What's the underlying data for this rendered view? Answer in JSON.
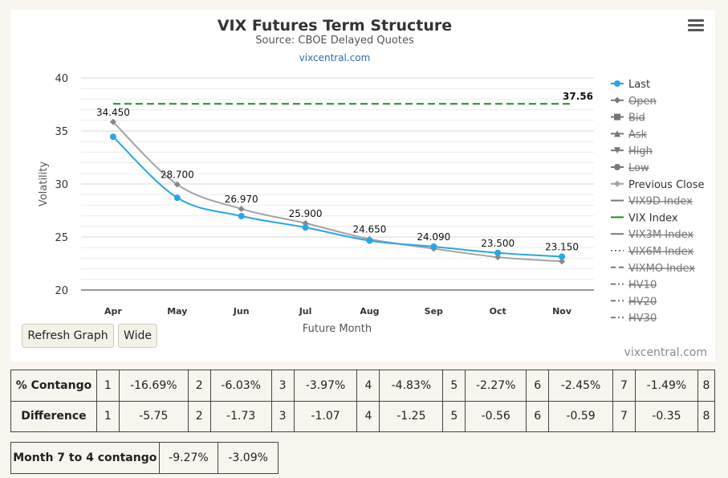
{
  "chart_data": {
    "type": "line",
    "title": "VIX Futures Term Structure",
    "subtitle": "Source: CBOE Delayed Quotes",
    "link": "vixcentral.com",
    "xlabel": "Future Month",
    "ylabel": "Volatility",
    "categories": [
      "Apr",
      "May",
      "Jun",
      "Jul",
      "Aug",
      "Sep",
      "Oct",
      "Nov"
    ],
    "ylim": [
      20,
      40
    ],
    "yticks": [
      20,
      25,
      30,
      35,
      40
    ],
    "grid": true,
    "legend_position": "right",
    "series": [
      {
        "name": "Last",
        "values": [
          34.45,
          28.7,
          26.97,
          25.9,
          24.65,
          24.09,
          23.5,
          23.15
        ],
        "labels": [
          "34.450",
          "28.700",
          "26.970",
          "25.900",
          "24.650",
          "24.090",
          "23.500",
          "23.150"
        ],
        "color": "#2aa5e8"
      },
      {
        "name": "Previous Close",
        "values": [
          35.85,
          29.95,
          27.65,
          26.3,
          24.8,
          23.9,
          23.1,
          22.7
        ],
        "color": "#a3a3a3"
      },
      {
        "name": "VIX Index",
        "value": 37.56,
        "label": "37.56",
        "color": "#1f8a1f",
        "style": "dashed"
      }
    ],
    "legend": [
      {
        "label": "Last",
        "marker": "circle",
        "line": "solid",
        "color": "#2aa5e8",
        "enabled": true
      },
      {
        "label": "Open",
        "marker": "diamond",
        "line": "solid",
        "color": "#555555",
        "enabled": false
      },
      {
        "label": "Bid",
        "marker": "square",
        "line": "solid",
        "color": "#555555",
        "enabled": false
      },
      {
        "label": "Ask",
        "marker": "triangle",
        "line": "solid",
        "color": "#555555",
        "enabled": false
      },
      {
        "label": "High",
        "marker": "triangle-down",
        "line": "solid",
        "color": "#555555",
        "enabled": false
      },
      {
        "label": "Low",
        "marker": "circle",
        "line": "solid",
        "color": "#555555",
        "enabled": false
      },
      {
        "label": "Previous Close",
        "marker": "diamond",
        "line": "solid",
        "color": "#a3a3a3",
        "enabled": true
      },
      {
        "label": "VIX9D Index",
        "marker": "none",
        "line": "solid",
        "color": "#777777",
        "enabled": false
      },
      {
        "label": "VIX Index",
        "marker": "none",
        "line": "solid",
        "color": "#1f8a1f",
        "enabled": true
      },
      {
        "label": "VIX3M Index",
        "marker": "none",
        "line": "solid",
        "color": "#777777",
        "enabled": false
      },
      {
        "label": "VIX6M Index",
        "marker": "none",
        "line": "dotted",
        "color": "#777777",
        "enabled": false
      },
      {
        "label": "VIXMO Index",
        "marker": "none",
        "line": "dashed",
        "color": "#777777",
        "enabled": false
      },
      {
        "label": "HV10",
        "marker": "none",
        "line": "dashdot",
        "color": "#777777",
        "enabled": false
      },
      {
        "label": "HV20",
        "marker": "none",
        "line": "dashdot",
        "color": "#777777",
        "enabled": false
      },
      {
        "label": "HV30",
        "marker": "none",
        "line": "dashdot",
        "color": "#777777",
        "enabled": false
      }
    ]
  },
  "buttons": {
    "refresh": "Refresh Graph",
    "wide": "Wide"
  },
  "credit": "vixcentral.com",
  "contango_table": {
    "rows": [
      {
        "label": "% Contango",
        "cells": [
          "1",
          "-16.69%",
          "2",
          "-6.03%",
          "3",
          "-3.97%",
          "4",
          "-4.83%",
          "5",
          "-2.27%",
          "6",
          "-2.45%",
          "7",
          "-1.49%",
          "8"
        ]
      },
      {
        "label": "Difference",
        "cells": [
          "1",
          "-5.75",
          "2",
          "-1.73",
          "3",
          "-1.07",
          "4",
          "-1.25",
          "5",
          "-0.56",
          "6",
          "-0.59",
          "7",
          "-0.35",
          "8"
        ]
      }
    ]
  },
  "month_table": {
    "label": "Month 7 to 4 contango",
    "values": [
      "-9.27%",
      "-3.09%"
    ]
  }
}
